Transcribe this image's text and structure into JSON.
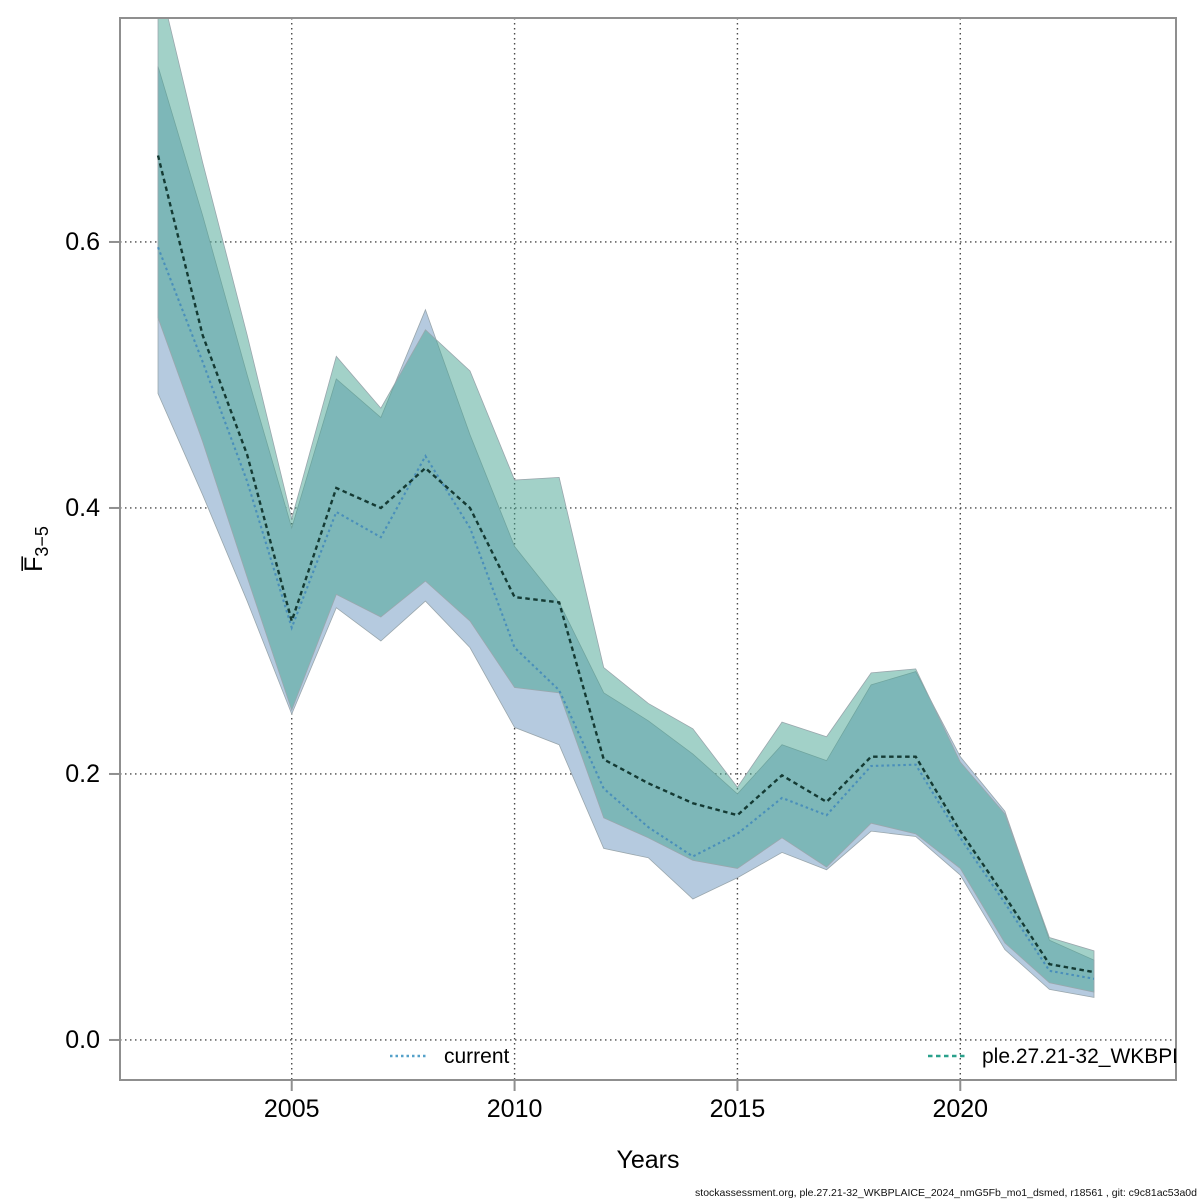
{
  "figure": {
    "xlabel": "Years",
    "ylabel_base": "F̅",
    "ylabel_sub": "3−5",
    "caption": "stockassessment.org, ple.27.21-32_WKBPLAICE_2024_nmG5Fb_mo1_dsmed, r18561 , git: c9c81ac53a0d"
  },
  "legend": {
    "current_label": "current",
    "wkbpl_label": "ple.27.21-32_WKBPL"
  },
  "colors": {
    "frame": "#8f8f8f",
    "grid": "#4a4a4a",
    "band_current": "#b5cadf",
    "band_wkbpl": "rgba(70,163,146,0.5)",
    "line_current": "#4a8fba",
    "line_wkbpl": "#143a33",
    "legend_sample_current": "#55a1c9",
    "legend_sample_wkbpl": "#2aa18c"
  },
  "chart_data": {
    "type": "line",
    "title": "",
    "xlabel": "Years",
    "ylabel": "Fbar 3-5",
    "grid": true,
    "legend_position": "bottom-inside",
    "axes": {
      "xlim": [
        2001.147,
        2024.84
      ],
      "ylim": [
        -0.0301,
        0.7684
      ],
      "x_ticks": [
        2005,
        2010,
        2015,
        2020
      ],
      "x_tick_labels": [
        "2005",
        "2010",
        "2015",
        "2020"
      ],
      "y_ticks": [
        0.0,
        0.2,
        0.4,
        0.6
      ],
      "y_tick_labels": [
        "0.0",
        "0.2",
        "0.4",
        "0.6"
      ]
    },
    "x": [
      2002,
      2003,
      2004,
      2005,
      2006,
      2007,
      2008,
      2009,
      2010,
      2011,
      2012,
      2013,
      2014,
      2015,
      2016,
      2017,
      2018,
      2019,
      2020,
      2021,
      2022,
      2023
    ],
    "series": [
      {
        "name": "current",
        "mean": [
          0.596,
          0.51,
          0.42,
          0.31,
          0.397,
          0.378,
          0.439,
          0.385,
          0.295,
          0.263,
          0.189,
          0.16,
          0.138,
          0.155,
          0.182,
          0.169,
          0.206,
          0.207,
          0.152,
          0.103,
          0.052,
          0.046
        ],
        "ci_hi": [
          0.732,
          0.62,
          0.5,
          0.385,
          0.497,
          0.468,
          0.549,
          0.455,
          0.371,
          0.329,
          0.261,
          0.24,
          0.215,
          0.185,
          0.222,
          0.21,
          0.267,
          0.277,
          0.213,
          0.172,
          0.075,
          0.06
        ],
        "ci_lo": [
          0.486,
          0.41,
          0.33,
          0.245,
          0.325,
          0.3,
          0.33,
          0.295,
          0.235,
          0.222,
          0.144,
          0.137,
          0.106,
          0.122,
          0.141,
          0.128,
          0.157,
          0.153,
          0.124,
          0.068,
          0.038,
          0.032
        ]
      },
      {
        "name": "ple.27.21-32_WKBPL",
        "mean": [
          0.665,
          0.53,
          0.44,
          0.315,
          0.415,
          0.4,
          0.43,
          0.4,
          0.333,
          0.329,
          0.211,
          0.193,
          0.178,
          0.169,
          0.199,
          0.179,
          0.213,
          0.213,
          0.157,
          0.108,
          0.057,
          0.051
        ],
        "ci_hi": [
          0.8,
          0.66,
          0.53,
          0.392,
          0.514,
          0.475,
          0.534,
          0.503,
          0.421,
          0.423,
          0.28,
          0.253,
          0.234,
          0.19,
          0.239,
          0.228,
          0.276,
          0.279,
          0.209,
          0.17,
          0.077,
          0.067
        ],
        "ci_lo": [
          0.543,
          0.45,
          0.348,
          0.248,
          0.335,
          0.318,
          0.345,
          0.315,
          0.265,
          0.261,
          0.167,
          0.152,
          0.135,
          0.129,
          0.152,
          0.13,
          0.163,
          0.155,
          0.129,
          0.073,
          0.043,
          0.036
        ]
      }
    ]
  }
}
